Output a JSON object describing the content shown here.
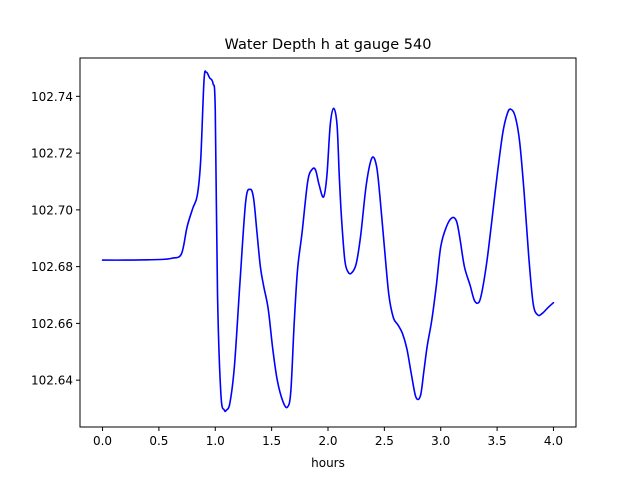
{
  "chart_data": {
    "type": "line",
    "title": "Water Depth h at gauge 540",
    "xlabel": "hours",
    "ylabel": "",
    "xlim": [
      -0.2,
      4.2
    ],
    "ylim": [
      102.6235,
      102.7535
    ],
    "xticks": [
      0.0,
      0.5,
      1.0,
      1.5,
      2.0,
      2.5,
      3.0,
      3.5,
      4.0
    ],
    "xtick_labels": [
      "0.0",
      "0.5",
      "1.0",
      "1.5",
      "2.0",
      "2.5",
      "3.0",
      "3.5",
      "4.0"
    ],
    "yticks": [
      102.64,
      102.66,
      102.68,
      102.7,
      102.72,
      102.74
    ],
    "ytick_labels": [
      "102.64",
      "102.66",
      "102.68",
      "102.70",
      "102.72",
      "102.74"
    ],
    "grid": false,
    "color": "#0000ff",
    "series": [
      {
        "name": "",
        "x": [
          0.0,
          0.2,
          0.4,
          0.55,
          0.62,
          0.7,
          0.75,
          0.8,
          0.84,
          0.87,
          0.9,
          0.92,
          0.95,
          0.98,
          1.0,
          1.02,
          1.05,
          1.08,
          1.1,
          1.13,
          1.17,
          1.22,
          1.27,
          1.31,
          1.34,
          1.37,
          1.4,
          1.43,
          1.47,
          1.51,
          1.55,
          1.6,
          1.64,
          1.67,
          1.7,
          1.73,
          1.77,
          1.82,
          1.86,
          1.89,
          1.92,
          1.96,
          1.99,
          2.02,
          2.05,
          2.08,
          2.1,
          2.12,
          2.15,
          2.18,
          2.21,
          2.25,
          2.29,
          2.34,
          2.39,
          2.43,
          2.46,
          2.5,
          2.54,
          2.58,
          2.62,
          2.66,
          2.7,
          2.74,
          2.78,
          2.82,
          2.85,
          2.88,
          2.92,
          2.96,
          3.0,
          3.05,
          3.1,
          3.14,
          3.17,
          3.21,
          3.26,
          3.3,
          3.34,
          3.37,
          3.41,
          3.45,
          3.5,
          3.55,
          3.59,
          3.62,
          3.66,
          3.7,
          3.74,
          3.78,
          3.82,
          3.86,
          3.9,
          3.95,
          4.0
        ],
        "y": [
          102.6823,
          102.6823,
          102.6824,
          102.6826,
          102.683,
          102.6845,
          102.694,
          102.7005,
          102.705,
          102.717,
          102.7455,
          102.7485,
          102.7465,
          102.7445,
          102.735,
          102.67,
          102.635,
          102.6295,
          102.6295,
          102.632,
          102.645,
          102.675,
          102.703,
          102.7072,
          102.704,
          102.692,
          102.68,
          102.673,
          102.665,
          102.651,
          102.64,
          102.6325,
          102.6305,
          102.636,
          102.66,
          102.679,
          102.692,
          102.71,
          102.7143,
          102.714,
          102.709,
          102.7045,
          102.712,
          102.73,
          102.7358,
          102.73,
          102.712,
          102.697,
          102.682,
          102.678,
          102.6778,
          102.681,
          102.691,
          102.709,
          102.7183,
          102.7155,
          102.705,
          102.687,
          102.67,
          102.662,
          102.6595,
          102.6565,
          102.651,
          102.642,
          102.634,
          102.6345,
          102.643,
          102.652,
          102.661,
          102.673,
          102.687,
          102.694,
          102.6972,
          102.696,
          102.69,
          102.68,
          102.6735,
          102.668,
          102.6675,
          102.672,
          102.682,
          102.695,
          102.712,
          102.727,
          102.7338,
          102.7355,
          102.733,
          102.724,
          102.706,
          102.684,
          102.667,
          102.663,
          102.6635,
          102.6655,
          102.6673
        ]
      }
    ]
  }
}
